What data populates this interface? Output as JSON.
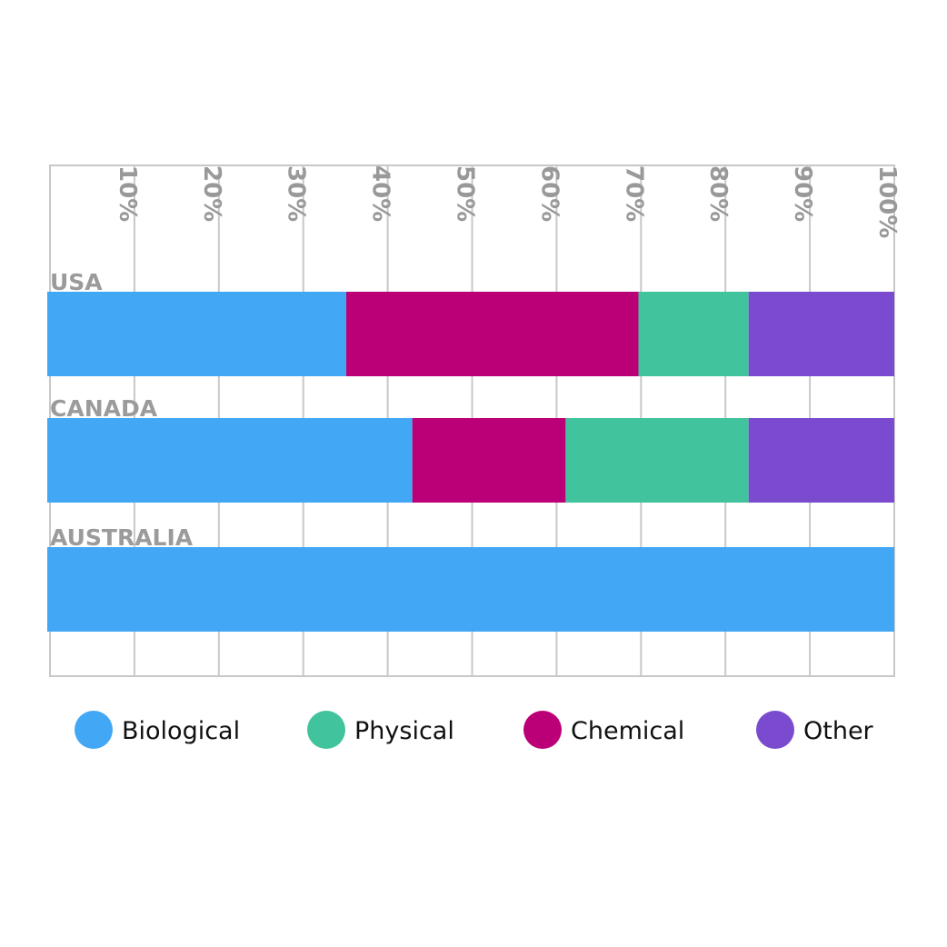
{
  "chart_data": {
    "type": "bar",
    "orientation": "horizontal",
    "stacked": true,
    "title": "",
    "xlabel": "",
    "ylabel": "",
    "xlim": [
      0,
      100
    ],
    "x_axis_position": "top",
    "grid": true,
    "legend_position": "bottom",
    "x_ticks": [
      "10%",
      "20%",
      "30%",
      "40%",
      "50%",
      "60%",
      "70%",
      "80%",
      "90%",
      "100%"
    ],
    "categories": [
      "USA",
      "CANADA",
      "AUSTRALIA"
    ],
    "series": [
      {
        "name": "Biological",
        "color": "#42a8f5",
        "values": [
          35.3,
          43.1,
          100
        ]
      },
      {
        "name": "Chemical",
        "color": "#bb0077",
        "values": [
          34.5,
          18.1,
          0
        ]
      },
      {
        "name": "Physical",
        "color": "#41c49d",
        "values": [
          13.0,
          21.6,
          0
        ]
      },
      {
        "name": "Other",
        "color": "#7a4bcf",
        "values": [
          17.2,
          17.2,
          0
        ]
      }
    ],
    "legend": [
      {
        "label": "Biological",
        "color": "#42a8f5"
      },
      {
        "label": "Physical",
        "color": "#41c49d"
      },
      {
        "label": "Chemical",
        "color": "#bb0077"
      },
      {
        "label": "Other",
        "color": "#7a4bcf"
      }
    ]
  }
}
